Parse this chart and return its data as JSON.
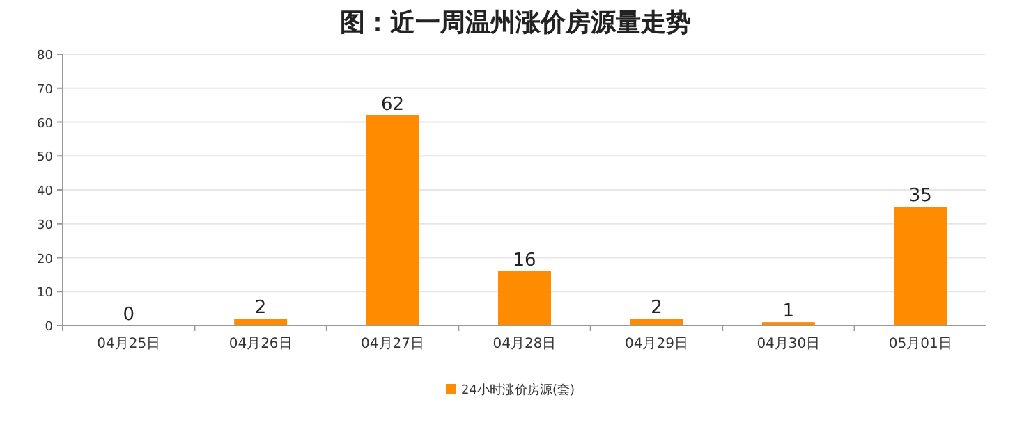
{
  "chart_data": {
    "type": "bar",
    "title": "图：近一周温州涨价房源量走势",
    "categories": [
      "04月25日",
      "04月26日",
      "04月27日",
      "04月28日",
      "04月29日",
      "04月30日",
      "05月01日"
    ],
    "series": [
      {
        "name": "24小时涨价房源(套)",
        "color": "#ff8c00",
        "values": [
          0,
          2,
          62,
          16,
          2,
          1,
          35
        ]
      }
    ],
    "ylim": [
      0,
      80
    ],
    "yticks": [
      0,
      10,
      20,
      30,
      40,
      50,
      60,
      70,
      80
    ],
    "grid": "y",
    "legend": "bottom",
    "data_labels": true
  }
}
